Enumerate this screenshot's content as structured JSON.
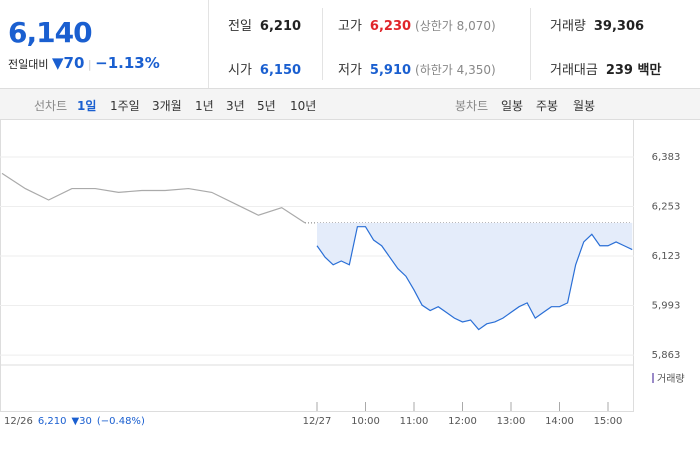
{
  "header": {
    "price": "6,140",
    "change_label": "전일대비",
    "change": "▼70",
    "change_pct": "−1.13%"
  },
  "stats": [
    {
      "label": "전일",
      "value": "6,210"
    },
    {
      "label": "고가",
      "value": "6,230",
      "note": "(상한가 8,070)"
    },
    {
      "label": "거래량",
      "value": "39,306"
    },
    {
      "label": "시가",
      "value": "6,150"
    },
    {
      "label": "저가",
      "value": "5,910",
      "note": "(하한가 4,350)"
    },
    {
      "label": "거래대금",
      "value": "239 백만"
    }
  ],
  "tabs": {
    "line_label": "선차트",
    "line_periods": [
      "1일",
      "1주일",
      "3개월",
      "1년",
      "3년",
      "5년",
      "10년"
    ],
    "candle_label": "봉차트",
    "candle_periods": [
      "일봉",
      "주봉",
      "월봉"
    ]
  },
  "chart_data": {
    "type": "line",
    "ylim": [
      5837,
      6459
    ],
    "yticks": [
      {
        "value": 5863,
        "label": "5,863"
      },
      {
        "value": 5993,
        "label": "5,993"
      },
      {
        "value": 6123,
        "label": "6,123"
      },
      {
        "value": 6253,
        "label": "6,253"
      },
      {
        "value": 6383,
        "label": "6,383"
      }
    ],
    "xticks": [
      {
        "value": "09:00",
        "label": "12/27"
      },
      "10:00",
      "11:00",
      "12:00",
      "13:00",
      "14:00",
      "15:00"
    ],
    "reference_line": 6210,
    "series": [
      {
        "color": "#aaaaaa",
        "x": [
          "09:00",
          "09:30",
          "10:00",
          "10:30",
          "11:00",
          "11:30",
          "12:00",
          "12:30",
          "13:00",
          "13:30",
          "14:00",
          "14:30",
          "15:00",
          "15:30"
        ],
        "values": [
          6340,
          6300,
          6270,
          6300,
          6300,
          6290,
          6295,
          6295,
          6300,
          6290,
          6260,
          6230,
          6250,
          6210
        ]
      },
      {
        "color": "#2a6fd6",
        "x": [
          "09:00",
          "09:10",
          "09:20",
          "09:30",
          "09:40",
          "09:50",
          "10:00",
          "10:10",
          "10:20",
          "10:30",
          "10:40",
          "10:50",
          "11:00",
          "11:10",
          "11:20",
          "11:30",
          "11:40",
          "11:50",
          "12:00",
          "12:10",
          "12:20",
          "12:30",
          "12:40",
          "12:50",
          "13:00",
          "13:10",
          "13:20",
          "13:30",
          "13:40",
          "13:50",
          "14:00",
          "14:10",
          "14:20",
          "14:30",
          "14:40",
          "14:50",
          "15:00",
          "15:10",
          "15:20",
          "15:30"
        ],
        "values": [
          6150,
          6120,
          6100,
          6110,
          6100,
          6200,
          6200,
          6165,
          6150,
          6120,
          6090,
          6070,
          6034,
          5994,
          5980,
          5990,
          5975,
          5960,
          5950,
          5955,
          5930,
          5945,
          5950,
          5960,
          5975,
          5990,
          6000,
          5960,
          5975,
          5990,
          5990,
          6000,
          6100,
          6160,
          6180,
          6150,
          6150,
          6160,
          6150,
          6140
        ]
      }
    ],
    "volume_label": "거래량"
  },
  "footer": {
    "date": "12/26",
    "close": "6,210",
    "change": "▼30",
    "change_pct": "(−0.48%)"
  }
}
